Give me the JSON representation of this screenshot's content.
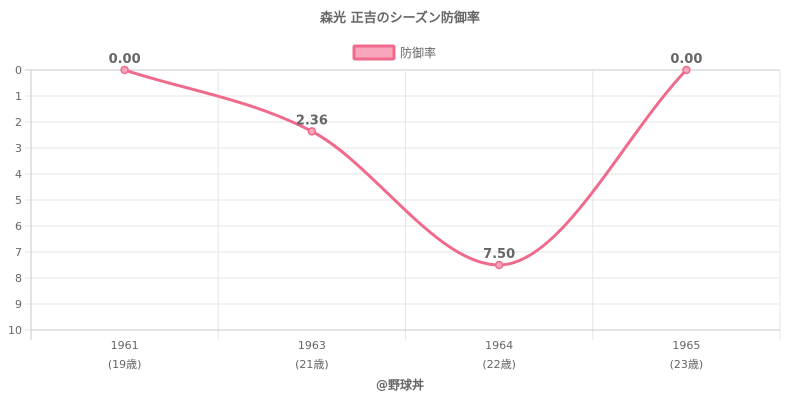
{
  "chart_data": {
    "type": "line",
    "title": "森光 正吉のシーズン防御率",
    "y_reversed": true,
    "ylim": [
      0,
      10
    ],
    "y_ticks": [
      "0",
      "1",
      "2",
      "3",
      "4",
      "5",
      "6",
      "7",
      "8",
      "9",
      "10"
    ],
    "categories": [
      {
        "year": "1961",
        "age": "(19歳)"
      },
      {
        "year": "1963",
        "age": "(21歳)"
      },
      {
        "year": "1964",
        "age": "(22歳)"
      },
      {
        "year": "1965",
        "age": "(23歳)"
      }
    ],
    "series": [
      {
        "name": "防御率",
        "values": [
          0.0,
          2.36,
          7.5,
          0.0
        ],
        "labels": [
          "0.00",
          "2.36",
          "7.50",
          "0.00"
        ],
        "color": "#f06a8c",
        "fill": "#f7a6bb"
      }
    ],
    "grid": true,
    "legend_position": "top",
    "credit": "@野球丼"
  }
}
